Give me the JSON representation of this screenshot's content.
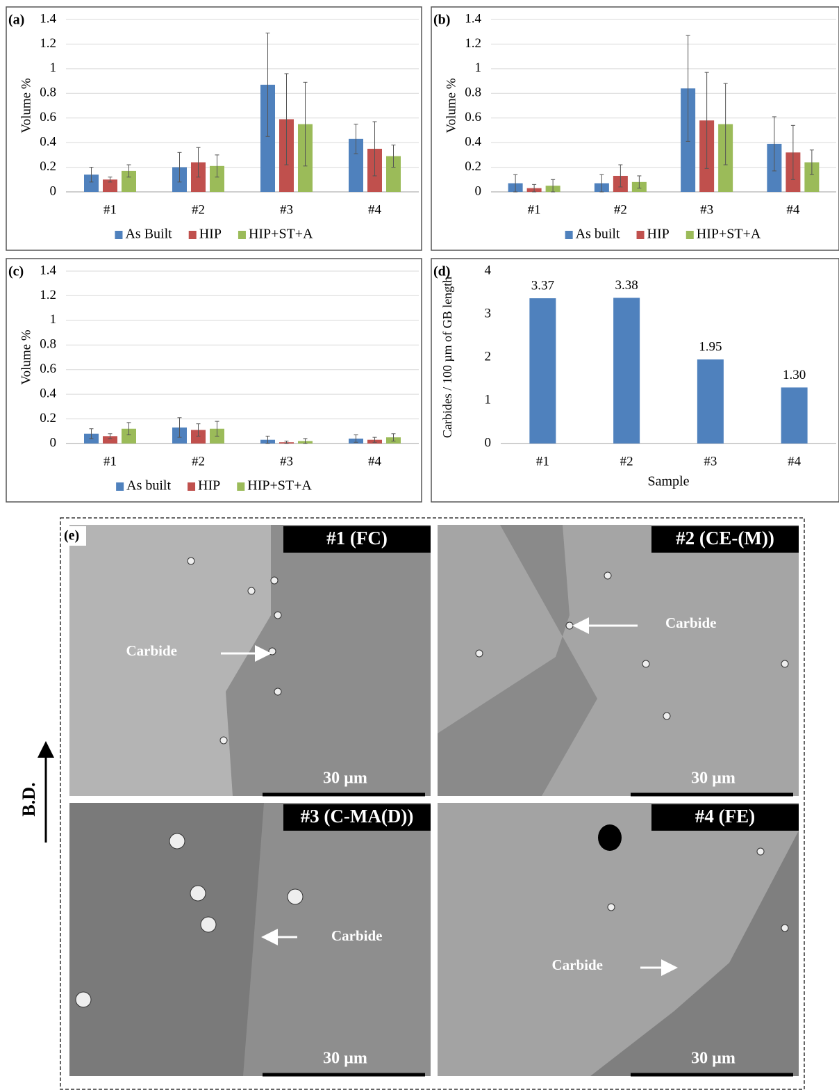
{
  "chart_data": [
    {
      "type": "bar",
      "title": "(a)",
      "ylabel": "Volume %",
      "categories": [
        "#1",
        "#2",
        "#3",
        "#4"
      ],
      "series": [
        {
          "name": "As Built",
          "color": "#4f81bd",
          "values": [
            0.14,
            0.2,
            0.87,
            0.43
          ],
          "errors": [
            0.06,
            0.12,
            0.42,
            0.12
          ]
        },
        {
          "name": "HIP",
          "color": "#c0504d",
          "values": [
            0.1,
            0.24,
            0.59,
            0.35
          ],
          "errors": [
            0.02,
            0.12,
            0.37,
            0.22
          ]
        },
        {
          "name": "HIP+ST+A",
          "color": "#9bbb59",
          "values": [
            0.17,
            0.21,
            0.55,
            0.29
          ],
          "errors": [
            0.05,
            0.09,
            0.34,
            0.09
          ]
        }
      ],
      "ylim": [
        0,
        1.4
      ],
      "yticks": [
        0,
        0.2,
        0.4,
        0.6,
        0.8,
        1,
        1.2,
        1.4
      ],
      "grid": true,
      "legend": "bottom"
    },
    {
      "type": "bar",
      "title": "(b)",
      "ylabel": "Volume %",
      "categories": [
        "#1",
        "#2",
        "#3",
        "#4"
      ],
      "series": [
        {
          "name": "As built",
          "color": "#4f81bd",
          "values": [
            0.07,
            0.07,
            0.84,
            0.39
          ],
          "errors": [
            0.07,
            0.07,
            0.43,
            0.22
          ]
        },
        {
          "name": "HIP",
          "color": "#c0504d",
          "values": [
            0.03,
            0.13,
            0.58,
            0.32
          ],
          "errors": [
            0.03,
            0.09,
            0.39,
            0.22
          ]
        },
        {
          "name": "HIP+ST+A",
          "color": "#9bbb59",
          "values": [
            0.05,
            0.08,
            0.55,
            0.24
          ],
          "errors": [
            0.05,
            0.05,
            0.33,
            0.1
          ]
        }
      ],
      "ylim": [
        0,
        1.4
      ],
      "yticks": [
        0,
        0.2,
        0.4,
        0.6,
        0.8,
        1,
        1.2,
        1.4
      ],
      "grid": true,
      "legend": "bottom"
    },
    {
      "type": "bar",
      "title": "(c)",
      "ylabel": "Volume %",
      "categories": [
        "#1",
        "#2",
        "#3",
        "#4"
      ],
      "series": [
        {
          "name": "As built",
          "color": "#4f81bd",
          "values": [
            0.08,
            0.13,
            0.03,
            0.04
          ],
          "errors": [
            0.04,
            0.08,
            0.03,
            0.03
          ]
        },
        {
          "name": "HIP",
          "color": "#c0504d",
          "values": [
            0.06,
            0.11,
            0.01,
            0.03
          ],
          "errors": [
            0.02,
            0.05,
            0.01,
            0.02
          ]
        },
        {
          "name": "HIP+ST+A",
          "color": "#9bbb59",
          "values": [
            0.12,
            0.12,
            0.02,
            0.05
          ],
          "errors": [
            0.05,
            0.06,
            0.02,
            0.03
          ]
        }
      ],
      "ylim": [
        0,
        1.4
      ],
      "yticks": [
        0,
        0.2,
        0.4,
        0.6,
        0.8,
        1,
        1.2,
        1.4
      ],
      "grid": true,
      "legend": "bottom"
    },
    {
      "type": "bar",
      "title": "(d)",
      "ylabel": "Carbides / 100 µm of GB length",
      "xlabel": "Sample",
      "categories": [
        "#1",
        "#2",
        "#3",
        "#4"
      ],
      "values": [
        3.37,
        3.38,
        1.95,
        1.3
      ],
      "value_labels": [
        "3.37",
        "3.38",
        "1.95",
        "1.30"
      ],
      "color": "#4f81bd",
      "ylim": [
        0,
        4
      ],
      "yticks": [
        0,
        1,
        2,
        3,
        4
      ],
      "grid": false
    }
  ],
  "micrographs": {
    "label": "(e)",
    "build_direction": "B.D.",
    "images": [
      {
        "title": "#1 (FC)",
        "annotation": "Carbide",
        "scale": "30 µm"
      },
      {
        "title": "#2 (CE-(M))",
        "annotation": "Carbide",
        "scale": "30 µm"
      },
      {
        "title": "#3 (C-MA(D))",
        "annotation": "Carbide",
        "scale": "30 µm"
      },
      {
        "title": "#4 (FE)",
        "annotation": "Carbide",
        "scale": "30 µm"
      }
    ]
  }
}
